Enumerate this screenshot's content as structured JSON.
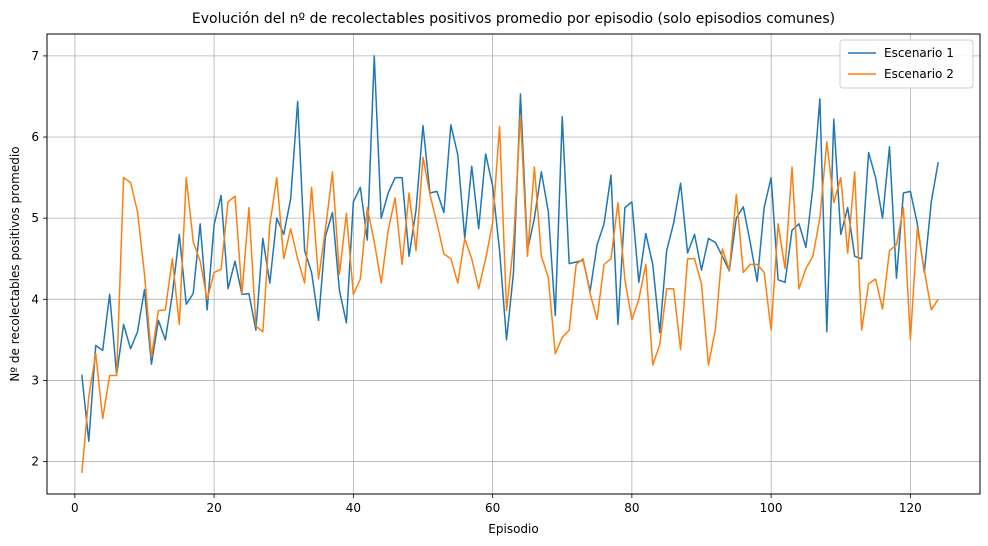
{
  "chart_data": {
    "type": "line",
    "title": "Evolución del nº de recolectables positivos promedio por episodio (solo episodios comunes)",
    "xlabel": "Episodio",
    "ylabel": "Nº de recolectables positivos promedio",
    "xlim": [
      -4,
      130
    ],
    "ylim": [
      1.6,
      7.27
    ],
    "xticks": [
      0,
      20,
      40,
      60,
      80,
      100,
      120
    ],
    "yticks": [
      2,
      3,
      4,
      5,
      6,
      7
    ],
    "grid": true,
    "legend_position": "top-right",
    "x_start": 1,
    "series": [
      {
        "name": "Escenario 1",
        "color": "#1f77b4",
        "values": [
          3.07,
          2.25,
          3.43,
          3.37,
          4.06,
          3.07,
          3.69,
          3.39,
          3.6,
          4.12,
          3.2,
          3.74,
          3.5,
          4.06,
          4.8,
          3.94,
          4.07,
          4.93,
          3.87,
          4.92,
          5.28,
          4.13,
          4.47,
          4.06,
          4.07,
          3.62,
          4.75,
          4.2,
          5.0,
          4.8,
          5.24,
          6.44,
          4.6,
          4.33,
          3.74,
          4.78,
          5.07,
          4.11,
          3.71,
          5.2,
          5.38,
          4.73,
          7.0,
          5.0,
          5.31,
          5.5,
          5.5,
          4.53,
          5.1,
          6.14,
          5.31,
          5.33,
          5.07,
          6.15,
          5.78,
          4.75,
          5.64,
          4.87,
          5.79,
          5.4,
          4.6,
          3.5,
          4.33,
          6.53,
          4.6,
          5.0,
          5.57,
          5.08,
          3.8,
          6.25,
          4.44,
          4.46,
          4.48,
          4.1,
          4.67,
          4.93,
          5.53,
          3.69,
          5.13,
          5.2,
          4.21,
          4.81,
          4.43,
          3.59,
          4.6,
          4.94,
          5.43,
          4.57,
          4.8,
          4.36,
          4.75,
          4.7,
          4.53,
          4.35,
          5.0,
          5.14,
          4.7,
          4.22,
          5.13,
          5.5,
          4.24,
          4.21,
          4.85,
          4.93,
          4.64,
          5.38,
          6.47,
          3.6,
          6.22,
          4.8,
          5.13,
          4.53,
          4.5,
          5.81,
          5.5,
          5.0,
          5.88,
          4.26,
          5.31,
          5.33,
          4.93,
          4.33,
          5.2,
          5.69
        ]
      },
      {
        "name": "Escenario 2",
        "color": "#ff7f0e",
        "values": [
          1.86,
          2.8,
          3.33,
          2.53,
          3.06,
          3.06,
          5.5,
          5.44,
          5.08,
          4.31,
          3.29,
          3.86,
          3.87,
          4.5,
          3.69,
          5.5,
          4.71,
          4.47,
          4.0,
          4.33,
          4.37,
          5.2,
          5.27,
          4.07,
          5.13,
          3.67,
          3.6,
          4.92,
          5.5,
          4.5,
          4.87,
          4.5,
          4.2,
          5.38,
          4.25,
          4.87,
          5.57,
          4.31,
          5.06,
          4.06,
          4.25,
          5.13,
          4.71,
          4.2,
          4.85,
          5.25,
          4.43,
          5.31,
          4.6,
          5.75,
          5.29,
          4.94,
          4.56,
          4.5,
          4.2,
          4.75,
          4.5,
          4.13,
          4.5,
          4.94,
          6.13,
          3.86,
          4.69,
          6.27,
          4.53,
          5.63,
          4.53,
          4.27,
          3.33,
          3.53,
          3.62,
          4.43,
          4.5,
          4.07,
          3.75,
          4.43,
          4.5,
          5.19,
          4.24,
          3.75,
          4.0,
          4.43,
          3.19,
          3.44,
          4.13,
          4.13,
          3.38,
          4.5,
          4.5,
          4.19,
          3.19,
          3.63,
          4.62,
          4.36,
          5.29,
          4.33,
          4.43,
          4.43,
          4.33,
          3.62,
          4.93,
          4.38,
          5.63,
          4.13,
          4.38,
          4.53,
          5.0,
          5.94,
          5.19,
          5.5,
          4.57,
          5.57,
          3.62,
          4.19,
          4.25,
          3.88,
          4.6,
          4.67,
          5.13,
          3.5,
          4.88,
          4.36,
          3.87,
          4.0
        ]
      }
    ]
  }
}
